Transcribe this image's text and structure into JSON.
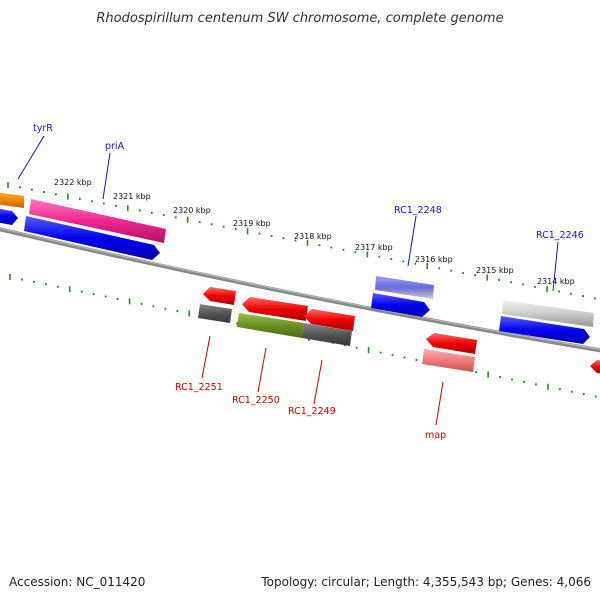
{
  "title": "Rhodospirillum centenum SW chromosome, complete genome",
  "footer": {
    "accession": "Accession: NC_011420",
    "summary": "Topology: circular; Length: 4,355,543 bp; Genes: 4,066"
  },
  "colors": {
    "backbone": "#888888",
    "tick": "#2a8a2a",
    "label_forward": "#1a1aaa",
    "label_reverse": "#cc0000"
  },
  "scale_labels": [
    "2322 kbp",
    "2321 kbp",
    "2320 kbp",
    "2319 kbp",
    "2318 kbp",
    "2317 kbp",
    "2316 kbp",
    "2315 kbp",
    "2314 kbp"
  ],
  "gene_labels": {
    "tyrR": "tyrR",
    "priA": "priA",
    "rc1_2248": "RC1_2248",
    "rc1_2246": "RC1_2246",
    "rc1_2251": "RC1_2251",
    "rc1_2250": "RC1_2250",
    "rc1_2249": "RC1_2249",
    "map": "map"
  }
}
